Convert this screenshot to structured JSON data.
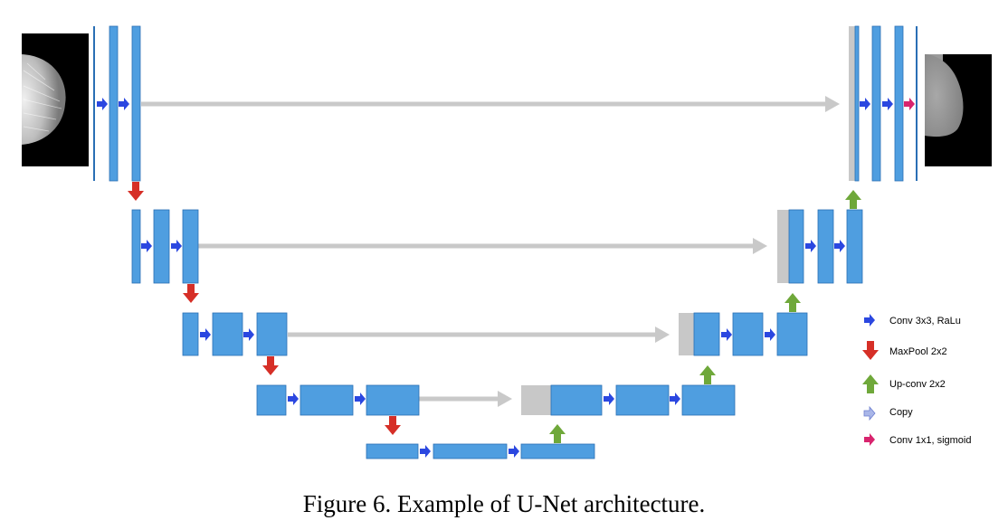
{
  "caption": "Figure 6. Example of U-Net architecture.",
  "colors": {
    "block": "#4f9ee0",
    "block_border": "#2a6fb5",
    "copy_block": "#c8c8c8",
    "conv_arrow": "#2b47e0",
    "maxpool_arrow": "#d62f27",
    "upconv_arrow": "#6fa83a",
    "copy_arrow": "#a9b6e8",
    "skip_line": "#c9c9c9",
    "sigmoid_arrow": "#d8246e"
  },
  "legend": [
    {
      "icon": "conv-arrow-icon",
      "label": "Conv 3x3, RaLu"
    },
    {
      "icon": "maxpool-arrow-icon",
      "label": "MaxPool 2x2"
    },
    {
      "icon": "upconv-arrow-icon",
      "label": "Up-conv 2x2"
    },
    {
      "icon": "copy-arrow-icon",
      "label": "Copy"
    },
    {
      "icon": "sigmoid-arrow-icon",
      "label": "Conv 1x1, sigmoid"
    }
  ],
  "images": [
    {
      "icon": "input-mammogram-image"
    },
    {
      "icon": "output-segmentation-image"
    }
  ]
}
